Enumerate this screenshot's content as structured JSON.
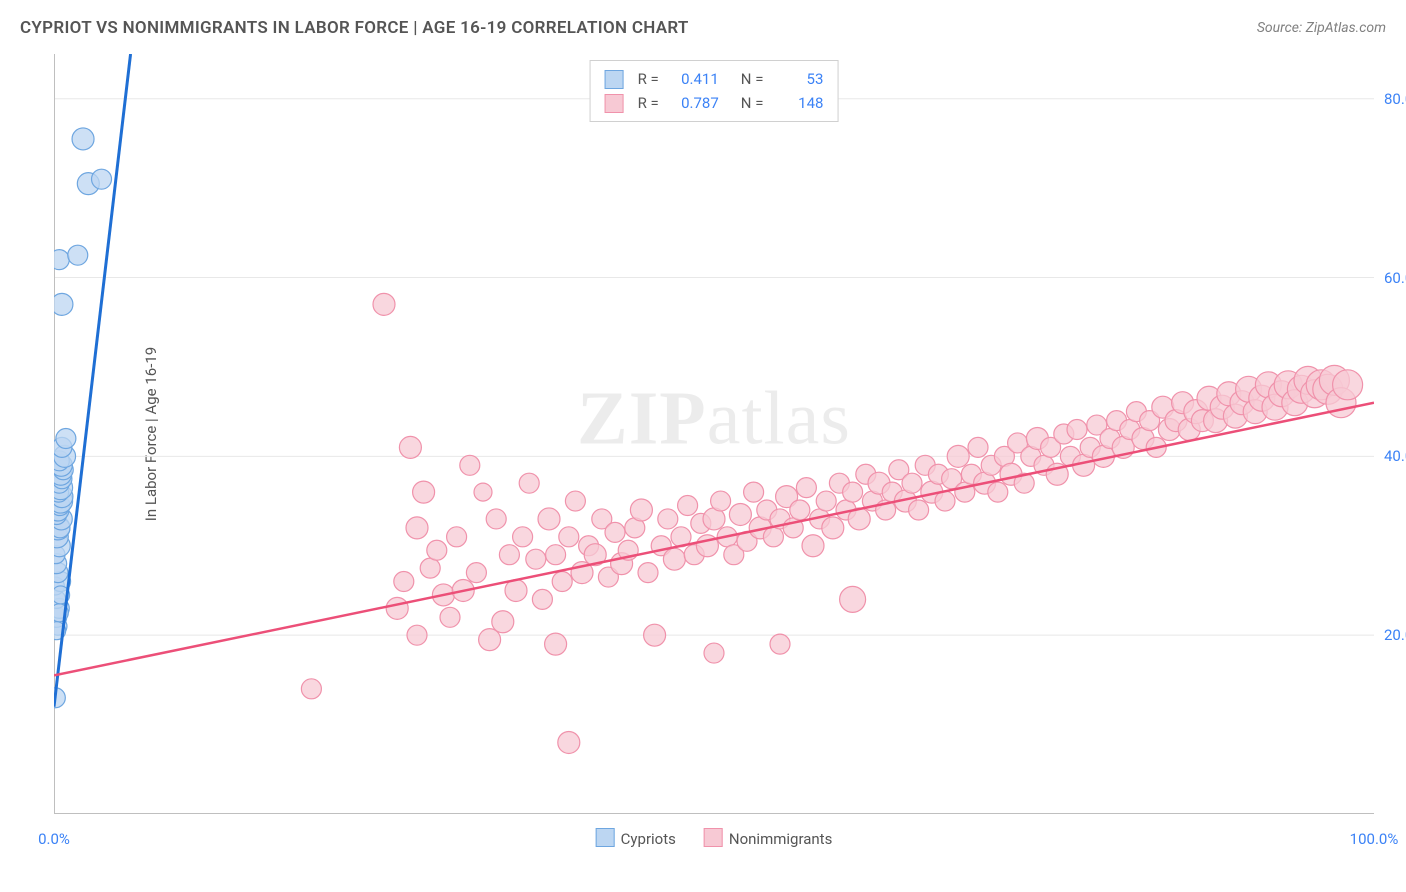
{
  "title": "CYPRIOT VS NONIMMIGRANTS IN LABOR FORCE | AGE 16-19 CORRELATION CHART",
  "source": "Source: ZipAtlas.com",
  "watermark": {
    "bold": "ZIP",
    "rest": "atlas"
  },
  "chart": {
    "type": "scatter",
    "xlim": [
      0,
      100
    ],
    "ylim": [
      0,
      85
    ],
    "ylabel": "In Labor Force | Age 16-19",
    "yticks": [
      {
        "v": 20,
        "label": "20.0%"
      },
      {
        "v": 40,
        "label": "40.0%"
      },
      {
        "v": 60,
        "label": "60.0%"
      },
      {
        "v": 80,
        "label": "80.0%"
      }
    ],
    "xticks_major": [
      {
        "v": 0,
        "label": "0.0%"
      },
      {
        "v": 100,
        "label": "100.0%"
      }
    ],
    "xticks_minor": [
      12.5,
      25,
      37.5,
      50,
      62.5,
      75,
      87.5,
      100
    ],
    "grid_color": "#e8e8e8",
    "axis_color": "#bfbfbf",
    "axis_width": 2,
    "tick_label_color": "#3b82f6",
    "tick_label_fontsize": 15,
    "background_color": "#ffffff",
    "series": [
      {
        "name": "Cypriots",
        "marker_fill": "#bcd6f2",
        "marker_stroke": "#6ea6e0",
        "marker_opacity": 0.75,
        "line_color": "#1f6fd4",
        "line_width": 3,
        "trend": {
          "x1": 0,
          "y1": 12,
          "x2": 5.8,
          "y2": 85,
          "dash_extend": true
        },
        "stats": {
          "R": "0.411",
          "N": "53"
        },
        "points": [
          [
            0.1,
            13,
            10
          ],
          [
            0.3,
            21,
            9
          ],
          [
            0.2,
            22,
            10
          ],
          [
            0.4,
            23,
            10
          ],
          [
            0.2,
            24,
            9
          ],
          [
            0.1,
            25.5,
            9
          ],
          [
            0.5,
            26,
            10
          ],
          [
            0.3,
            27,
            10
          ],
          [
            0.2,
            28,
            10
          ],
          [
            0.15,
            29,
            9
          ],
          [
            0.4,
            30,
            11
          ],
          [
            0.25,
            31,
            11
          ],
          [
            0.3,
            32,
            12
          ],
          [
            0.45,
            32,
            10
          ],
          [
            0.55,
            33,
            11
          ],
          [
            0.2,
            33.5,
            10
          ],
          [
            0.3,
            34,
            11
          ],
          [
            0.45,
            34.5,
            10
          ],
          [
            0.5,
            35,
            12
          ],
          [
            0.6,
            35.5,
            11
          ],
          [
            0.35,
            36,
            10
          ],
          [
            0.5,
            36.5,
            12
          ],
          [
            0.4,
            37,
            10
          ],
          [
            0.6,
            37.5,
            10
          ],
          [
            0.5,
            38,
            11
          ],
          [
            0.7,
            38.5,
            10
          ],
          [
            0.55,
            39,
            11
          ],
          [
            0.4,
            39.5,
            10
          ],
          [
            0.8,
            40,
            11
          ],
          [
            0.6,
            41,
            10
          ],
          [
            0.9,
            42,
            10
          ],
          [
            0.4,
            22.5,
            9
          ],
          [
            0.2,
            20.5,
            9
          ],
          [
            0.5,
            24.5,
            9
          ],
          [
            0.6,
            57,
            11
          ],
          [
            0.4,
            62,
            10
          ],
          [
            1.8,
            62.5,
            10
          ],
          [
            2.6,
            70.5,
            11
          ],
          [
            3.6,
            71,
            10
          ],
          [
            2.2,
            75.5,
            11
          ]
        ]
      },
      {
        "name": "Nonimmigrants",
        "marker_fill": "#f7c9d4",
        "marker_stroke": "#f092ab",
        "marker_opacity": 0.75,
        "line_color": "#ec4f78",
        "line_width": 2.5,
        "trend": {
          "x1": 0,
          "y1": 15.5,
          "x2": 100,
          "y2": 46
        },
        "stats": {
          "R": "0.787",
          "N": "148"
        },
        "points": [
          [
            19.5,
            14,
            10
          ],
          [
            25,
            57,
            11
          ],
          [
            26,
            23,
            11
          ],
          [
            26.5,
            26,
            10
          ],
          [
            27,
            41,
            11
          ],
          [
            27.5,
            20,
            10
          ],
          [
            27.5,
            32,
            11
          ],
          [
            28,
            36,
            11
          ],
          [
            28.5,
            27.5,
            10
          ],
          [
            29,
            29.5,
            10
          ],
          [
            29.5,
            24.5,
            11
          ],
          [
            30,
            22,
            10
          ],
          [
            30.5,
            31,
            10
          ],
          [
            31,
            25,
            11
          ],
          [
            31.5,
            39,
            10
          ],
          [
            32,
            27,
            10
          ],
          [
            32.5,
            36,
            9
          ],
          [
            33,
            19.5,
            11
          ],
          [
            33.5,
            33,
            10
          ],
          [
            34,
            21.5,
            11
          ],
          [
            34.5,
            29,
            10
          ],
          [
            35,
            25,
            11
          ],
          [
            35.5,
            31,
            10
          ],
          [
            36,
            37,
            10
          ],
          [
            36.5,
            28.5,
            10
          ],
          [
            37,
            24,
            10
          ],
          [
            37.5,
            33,
            11
          ],
          [
            38,
            19,
            11
          ],
          [
            38,
            29,
            10
          ],
          [
            38.5,
            26,
            10
          ],
          [
            39,
            8,
            11
          ],
          [
            39,
            31,
            10
          ],
          [
            39.5,
            35,
            10
          ],
          [
            40,
            27,
            11
          ],
          [
            40.5,
            30,
            10
          ],
          [
            41,
            29,
            11
          ],
          [
            41.5,
            33,
            10
          ],
          [
            42,
            26.5,
            10
          ],
          [
            42.5,
            31.5,
            10
          ],
          [
            43,
            28,
            11
          ],
          [
            43.5,
            29.5,
            10
          ],
          [
            44,
            32,
            10
          ],
          [
            44.5,
            34,
            11
          ],
          [
            45,
            27,
            10
          ],
          [
            45.5,
            20,
            11
          ],
          [
            46,
            30,
            10
          ],
          [
            46.5,
            33,
            10
          ],
          [
            47,
            28.5,
            11
          ],
          [
            47.5,
            31,
            10
          ],
          [
            48,
            34.5,
            10
          ],
          [
            48.5,
            29,
            10
          ],
          [
            49,
            32.5,
            10
          ],
          [
            49.5,
            30,
            11
          ],
          [
            50,
            33,
            11
          ],
          [
            50,
            18,
            10
          ],
          [
            50.5,
            35,
            10
          ],
          [
            51,
            31,
            10
          ],
          [
            51.5,
            29,
            10
          ],
          [
            52,
            33.5,
            11
          ],
          [
            52.5,
            30.5,
            10
          ],
          [
            53,
            36,
            10
          ],
          [
            53.5,
            32,
            11
          ],
          [
            54,
            34,
            10
          ],
          [
            54.5,
            31,
            10
          ],
          [
            55,
            19,
            10
          ],
          [
            55,
            33,
            10
          ],
          [
            55.5,
            35.5,
            11
          ],
          [
            56,
            32,
            10
          ],
          [
            56.5,
            34,
            10
          ],
          [
            57,
            36.5,
            10
          ],
          [
            57.5,
            30,
            11
          ],
          [
            58,
            33,
            10
          ],
          [
            58.5,
            35,
            10
          ],
          [
            59,
            32,
            11
          ],
          [
            59.5,
            37,
            10
          ],
          [
            60,
            34,
            10
          ],
          [
            60.5,
            24,
            13
          ],
          [
            60.5,
            36,
            10
          ],
          [
            61,
            33,
            11
          ],
          [
            61.5,
            38,
            10
          ],
          [
            62,
            35,
            10
          ],
          [
            62.5,
            37,
            11
          ],
          [
            63,
            34,
            10
          ],
          [
            63.5,
            36,
            10
          ],
          [
            64,
            38.5,
            10
          ],
          [
            64.5,
            35,
            11
          ],
          [
            65,
            37,
            10
          ],
          [
            65.5,
            34,
            10
          ],
          [
            66,
            39,
            10
          ],
          [
            66.5,
            36,
            11
          ],
          [
            67,
            38,
            10
          ],
          [
            67.5,
            35,
            10
          ],
          [
            68,
            37.5,
            10
          ],
          [
            68.5,
            40,
            11
          ],
          [
            69,
            36,
            10
          ],
          [
            69.5,
            38,
            10
          ],
          [
            70,
            41,
            10
          ],
          [
            70.5,
            37,
            11
          ],
          [
            71,
            39,
            10
          ],
          [
            71.5,
            36,
            10
          ],
          [
            72,
            40,
            10
          ],
          [
            72.5,
            38,
            11
          ],
          [
            73,
            41.5,
            10
          ],
          [
            73.5,
            37,
            10
          ],
          [
            74,
            40,
            10
          ],
          [
            74.5,
            42,
            11
          ],
          [
            75,
            39,
            10
          ],
          [
            75.5,
            41,
            10
          ],
          [
            76,
            38,
            11
          ],
          [
            76.5,
            42.5,
            10
          ],
          [
            77,
            40,
            10
          ],
          [
            77.5,
            43,
            10
          ],
          [
            78,
            39,
            11
          ],
          [
            78.5,
            41,
            10
          ],
          [
            79,
            43.5,
            10
          ],
          [
            79.5,
            40,
            11
          ],
          [
            80,
            42,
            10
          ],
          [
            80.5,
            44,
            10
          ],
          [
            81,
            41,
            11
          ],
          [
            81.5,
            43,
            10
          ],
          [
            82,
            45,
            10
          ],
          [
            82.5,
            42,
            11
          ],
          [
            83,
            44,
            10
          ],
          [
            83.5,
            41,
            10
          ],
          [
            84,
            45.5,
            11
          ],
          [
            84.5,
            43,
            11
          ],
          [
            85,
            44,
            11
          ],
          [
            85.5,
            46,
            11
          ],
          [
            86,
            43,
            11
          ],
          [
            86.5,
            45,
            12
          ],
          [
            87,
            44,
            11
          ],
          [
            87.5,
            46.5,
            12
          ],
          [
            88,
            44,
            12
          ],
          [
            88.5,
            45.5,
            12
          ],
          [
            89,
            47,
            12
          ],
          [
            89.5,
            44.5,
            12
          ],
          [
            90,
            46,
            12
          ],
          [
            90.5,
            47.5,
            13
          ],
          [
            91,
            45,
            12
          ],
          [
            91.5,
            46.5,
            13
          ],
          [
            92,
            48,
            13
          ],
          [
            92.5,
            45.5,
            13
          ],
          [
            93,
            47,
            13
          ],
          [
            93.5,
            48,
            14
          ],
          [
            94,
            46,
            13
          ],
          [
            94.5,
            47.5,
            14
          ],
          [
            95,
            48.5,
            14
          ],
          [
            95.5,
            47,
            14
          ],
          [
            96,
            48,
            15
          ],
          [
            96.5,
            47.5,
            15
          ],
          [
            97,
            48.5,
            15
          ],
          [
            97.5,
            46,
            15
          ],
          [
            98,
            48,
            15
          ]
        ]
      }
    ],
    "legend_top": {
      "rows": [
        {
          "sw_fill": "#bcd6f2",
          "sw_stroke": "#6ea6e0",
          "r_label": "R =",
          "r_val": "0.411",
          "n_label": "N =",
          "n_val": "53"
        },
        {
          "sw_fill": "#f7c9d4",
          "sw_stroke": "#f092ab",
          "r_label": "R =",
          "r_val": "0.787",
          "n_label": "N =",
          "n_val": "148"
        }
      ]
    },
    "legend_bottom": [
      {
        "sw_fill": "#bcd6f2",
        "sw_stroke": "#6ea6e0",
        "label": "Cypriots"
      },
      {
        "sw_fill": "#f7c9d4",
        "sw_stroke": "#f092ab",
        "label": "Nonimmigrants"
      }
    ]
  }
}
